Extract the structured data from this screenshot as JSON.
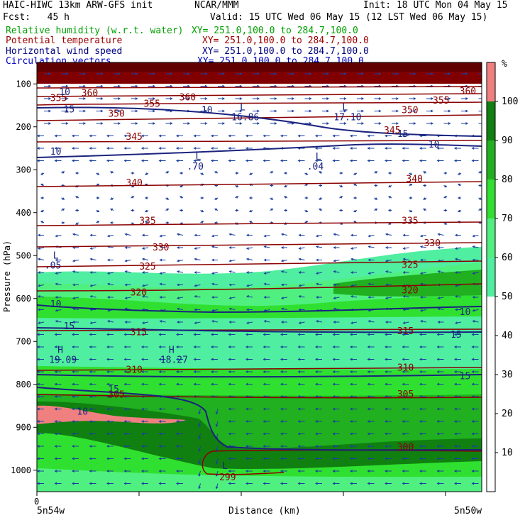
{
  "header": {
    "model": "HAIC-HIWC 13km ARW-GFS init",
    "org": "NCAR/MMM",
    "init": "Init: 18 UTC Mon 04 May 15",
    "fcst": "Fcst:   45 h",
    "valid": "Valid: 15 UTC Wed 06 May 15 (12 LST Wed 06 May 15)",
    "fields": [
      {
        "label": "Relative humidity (w.r.t. water)",
        "xy": "XY= 251.0,100.0 to 284.7,100.0",
        "color": "#00a000"
      },
      {
        "label": "Potential temperature",
        "xy": "XY= 251.0,100.0 to 284.7,100.0",
        "color": "#a00000"
      },
      {
        "label": "Horizontal wind speed",
        "xy": "XY= 251.0,100.0 to 284.7,100.0",
        "color": "#000080"
      },
      {
        "label": "Circulation vectors",
        "xy": "XY= 251.0,100.0 to 284.7,100.0",
        "color": "#0000c0"
      }
    ]
  },
  "chart_data": {
    "type": "heatmap",
    "xlabel": "Distance (km)",
    "ylabel": "Pressure (hPa)",
    "x_ticks": [
      "0"
    ],
    "x_end_labels": [
      "5n54w",
      "5n50w"
    ],
    "y_ticks": [
      100,
      200,
      300,
      400,
      500,
      600,
      700,
      800,
      900,
      1000
    ],
    "ylim": [
      1050,
      50
    ],
    "colorbar": {
      "unit": "%",
      "ticks": [
        10,
        20,
        30,
        40,
        50,
        60,
        70,
        80,
        90,
        100
      ],
      "bands": [
        {
          "from": 0,
          "to": 50,
          "color": "#ffffff"
        },
        {
          "from": 50,
          "to": 60,
          "color": "#50eea0"
        },
        {
          "from": 60,
          "to": 70,
          "color": "#50f080"
        },
        {
          "from": 70,
          "to": 80,
          "color": "#30e030"
        },
        {
          "from": 80,
          "to": 90,
          "color": "#20b020"
        },
        {
          "from": 90,
          "to": 100,
          "color": "#108010"
        },
        {
          "from": 100,
          "to": 110,
          "color": "#f08080"
        }
      ]
    },
    "theta_labels": [
      {
        "text": "360",
        "x": 0.1,
        "p": 120
      },
      {
        "text": "355",
        "x": 0.03,
        "p": 132
      },
      {
        "text": "360",
        "x": 0.32,
        "p": 130
      },
      {
        "text": "355",
        "x": 0.24,
        "p": 145
      },
      {
        "text": "350",
        "x": 0.16,
        "p": 168
      },
      {
        "text": "345",
        "x": 0.2,
        "p": 222
      },
      {
        "text": "360",
        "x": 0.95,
        "p": 116
      },
      {
        "text": "355",
        "x": 0.89,
        "p": 138
      },
      {
        "text": "350",
        "x": 0.82,
        "p": 160
      },
      {
        "text": "345",
        "x": 0.78,
        "p": 207
      },
      {
        "text": "340",
        "x": 0.2,
        "p": 329
      },
      {
        "text": "340",
        "x": 0.83,
        "p": 320
      },
      {
        "text": "335",
        "x": 0.23,
        "p": 418
      },
      {
        "text": "335",
        "x": 0.82,
        "p": 418
      },
      {
        "text": "330",
        "x": 0.26,
        "p": 480
      },
      {
        "text": "330",
        "x": 0.87,
        "p": 470
      },
      {
        "text": "325",
        "x": 0.23,
        "p": 524
      },
      {
        "text": "325",
        "x": 0.82,
        "p": 520
      },
      {
        "text": "320",
        "x": 0.21,
        "p": 585
      },
      {
        "text": "320",
        "x": 0.82,
        "p": 580
      },
      {
        "text": "315",
        "x": 0.21,
        "p": 677
      },
      {
        "text": "315",
        "x": 0.81,
        "p": 675
      },
      {
        "text": "310",
        "x": 0.2,
        "p": 765
      },
      {
        "text": "310",
        "x": 0.81,
        "p": 760
      },
      {
        "text": "305",
        "x": 0.16,
        "p": 823
      },
      {
        "text": "305",
        "x": 0.81,
        "p": 822
      },
      {
        "text": "300",
        "x": 0.81,
        "p": 945
      },
      {
        "text": "299",
        "x": 0.41,
        "p": 1015
      }
    ],
    "wind_labels": [
      {
        "text": "10",
        "x": 0.05,
        "p": 118
      },
      {
        "text": "15",
        "x": 0.06,
        "p": 158
      },
      {
        "text": "10",
        "x": 0.03,
        "p": 257
      },
      {
        "text": "15",
        "x": 0.81,
        "p": 215
      },
      {
        "text": "10",
        "x": 0.88,
        "p": 240
      },
      {
        "text": "10",
        "x": 0.03,
        "p": 612
      },
      {
        "text": "15",
        "x": 0.06,
        "p": 663
      },
      {
        "text": "10",
        "x": 0.95,
        "p": 630
      },
      {
        "text": "15",
        "x": 0.93,
        "p": 683
      },
      {
        "text": "15",
        "x": 0.16,
        "p": 810
      },
      {
        "text": "10",
        "x": 0.09,
        "p": 862
      },
      {
        "text": "15",
        "x": 0.95,
        "p": 780
      },
      {
        "text": "10",
        "x": 0.37,
        "p": 160
      }
    ],
    "extrema": [
      {
        "type": "L",
        "value": "16.86",
        "x": 0.45,
        "p": 165
      },
      {
        "type": "L",
        "value": "17.10",
        "x": 0.68,
        "p": 165
      },
      {
        "type": "L",
        "value": ".70",
        "x": 0.35,
        "p": 280
      },
      {
        "type": "L",
        "value": ".04",
        "x": 0.62,
        "p": 280
      },
      {
        "type": "L",
        "value": ".05",
        "x": 0.03,
        "p": 510
      },
      {
        "type": "H",
        "value": "19.09",
        "x": 0.04,
        "p": 730
      },
      {
        "type": "H",
        "value": "18.27",
        "x": 0.29,
        "p": 730
      },
      {
        "type": "L",
        "value": "",
        "x": 0.41,
        "p": 1000
      }
    ]
  }
}
